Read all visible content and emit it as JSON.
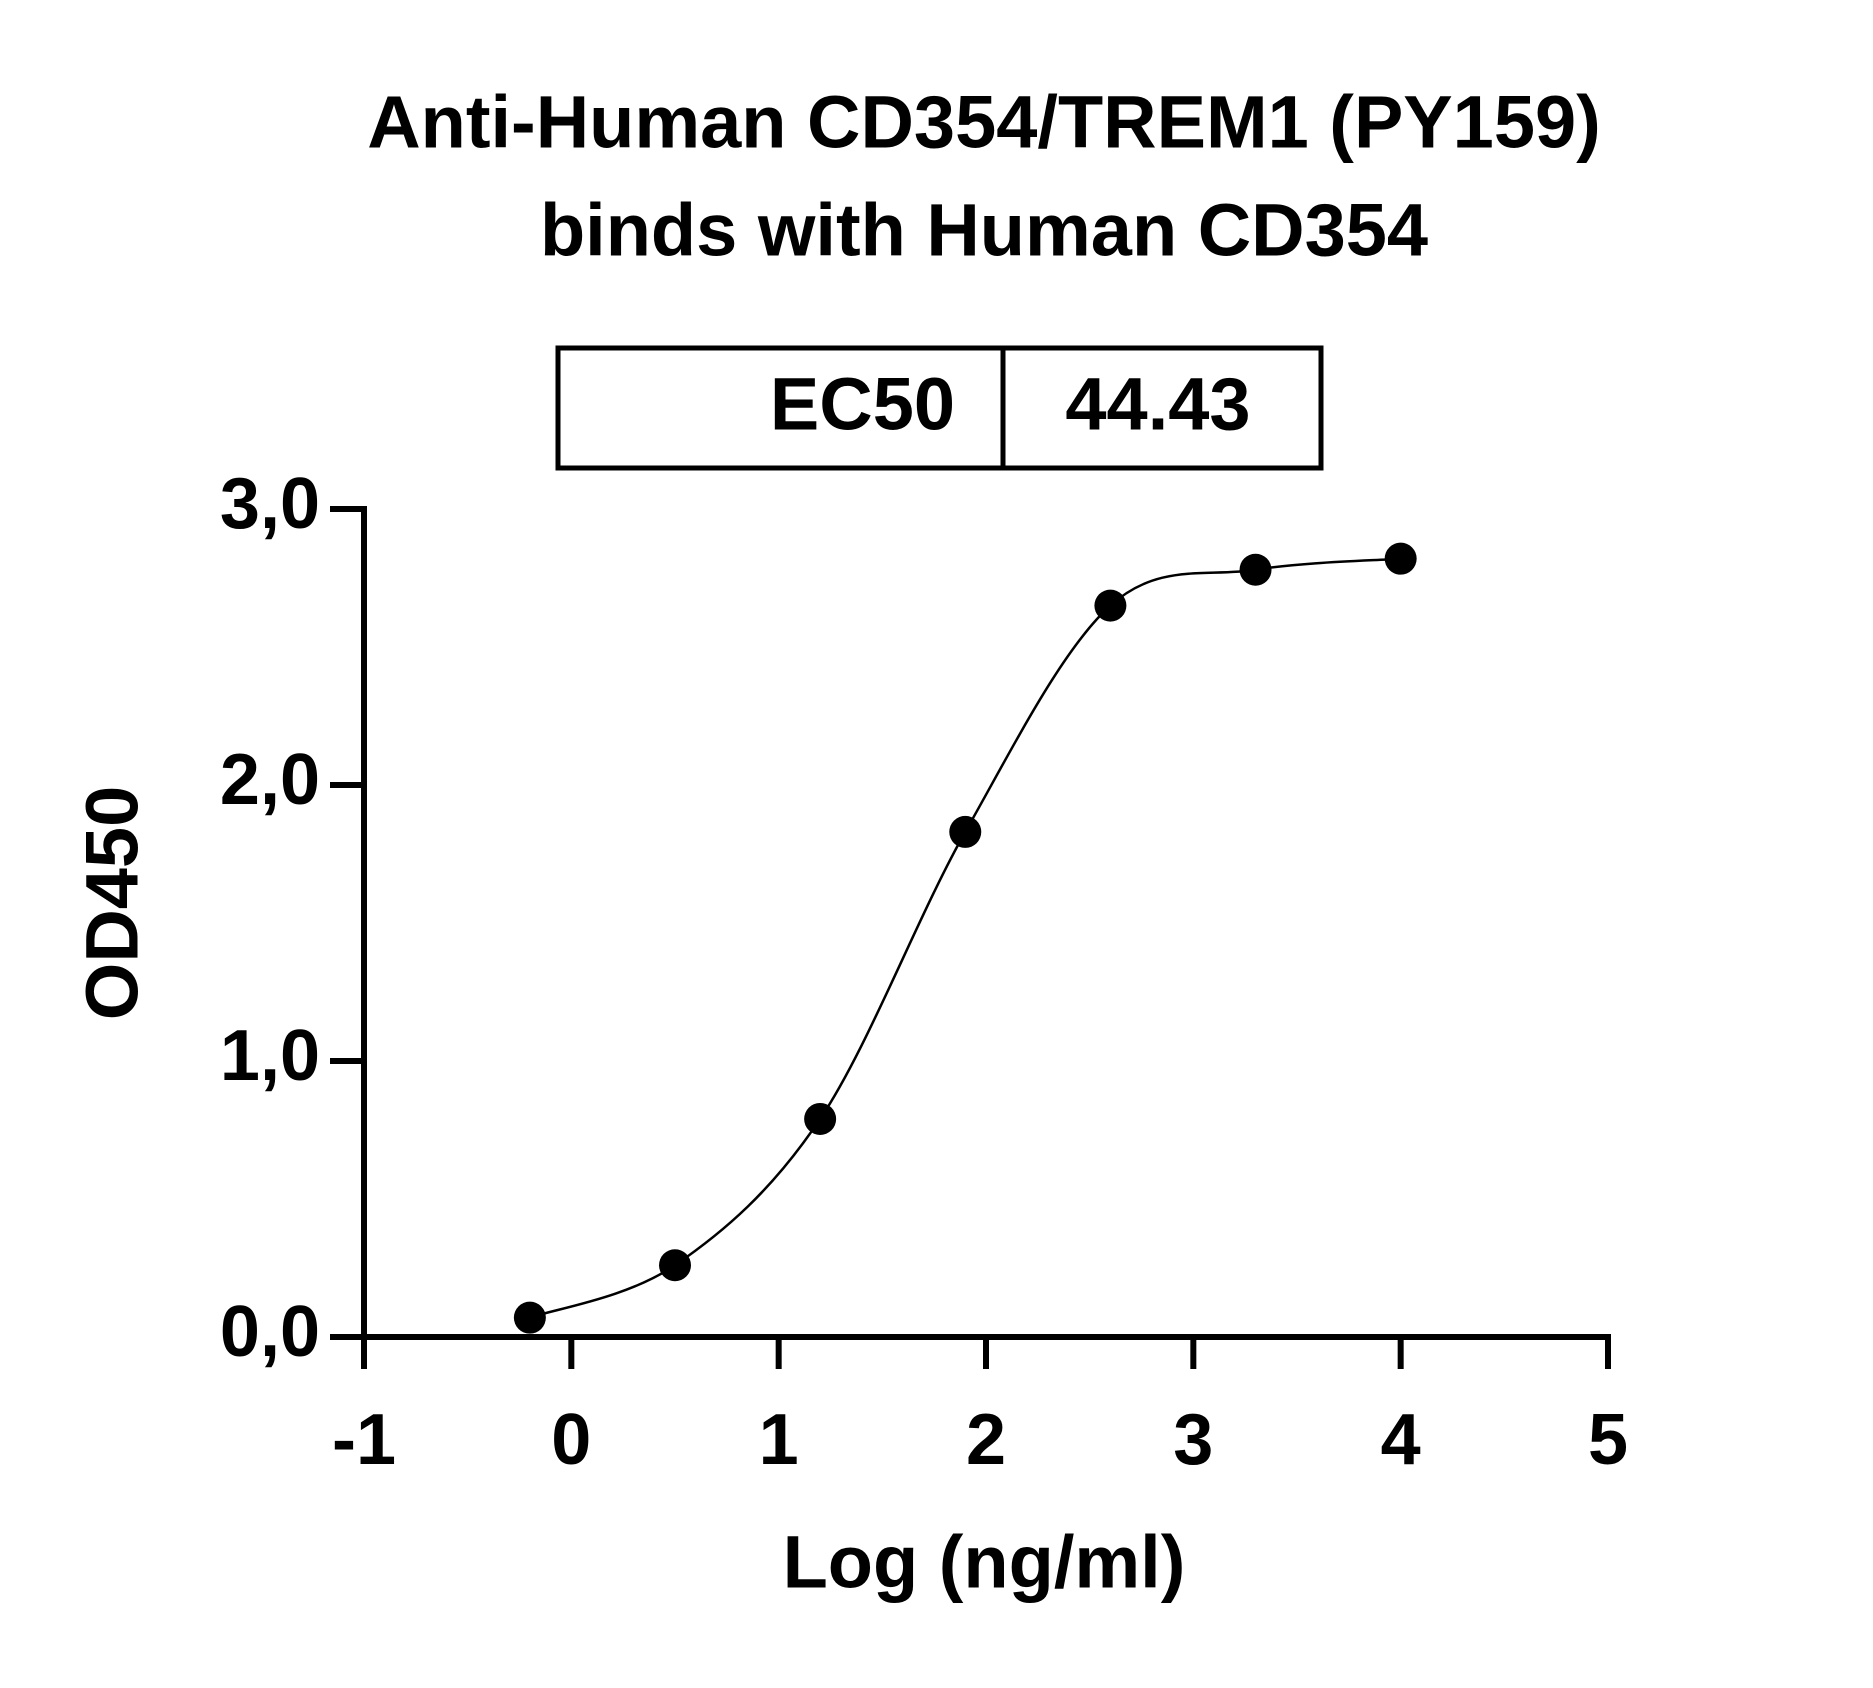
{
  "chart_data": {
    "type": "scatter",
    "title": [
      "Anti-Human CD354/TREM1 (PY159)",
      "binds with Human CD354"
    ],
    "table": {
      "label": "EC50",
      "value": "44.43"
    },
    "x_label": "Log (ng/ml)",
    "y_label": "OD450",
    "x": [
      -0.2,
      0.5,
      1.2,
      1.9,
      2.6,
      3.3,
      4.0
    ],
    "values": [
      0.07,
      0.26,
      0.79,
      1.83,
      2.65,
      2.78,
      2.82
    ],
    "color": "#000000",
    "xlim": [
      -1,
      5
    ],
    "xticks": [
      -1,
      0,
      1,
      2,
      3,
      4,
      5
    ],
    "ylim": [
      0,
      3
    ],
    "yticks": [
      {
        "value": 0,
        "label": "0,0"
      },
      {
        "value": 1,
        "label": "1,0"
      },
      {
        "value": 2,
        "label": "2,0"
      },
      {
        "value": 3,
        "label": "3,0"
      }
    ]
  }
}
